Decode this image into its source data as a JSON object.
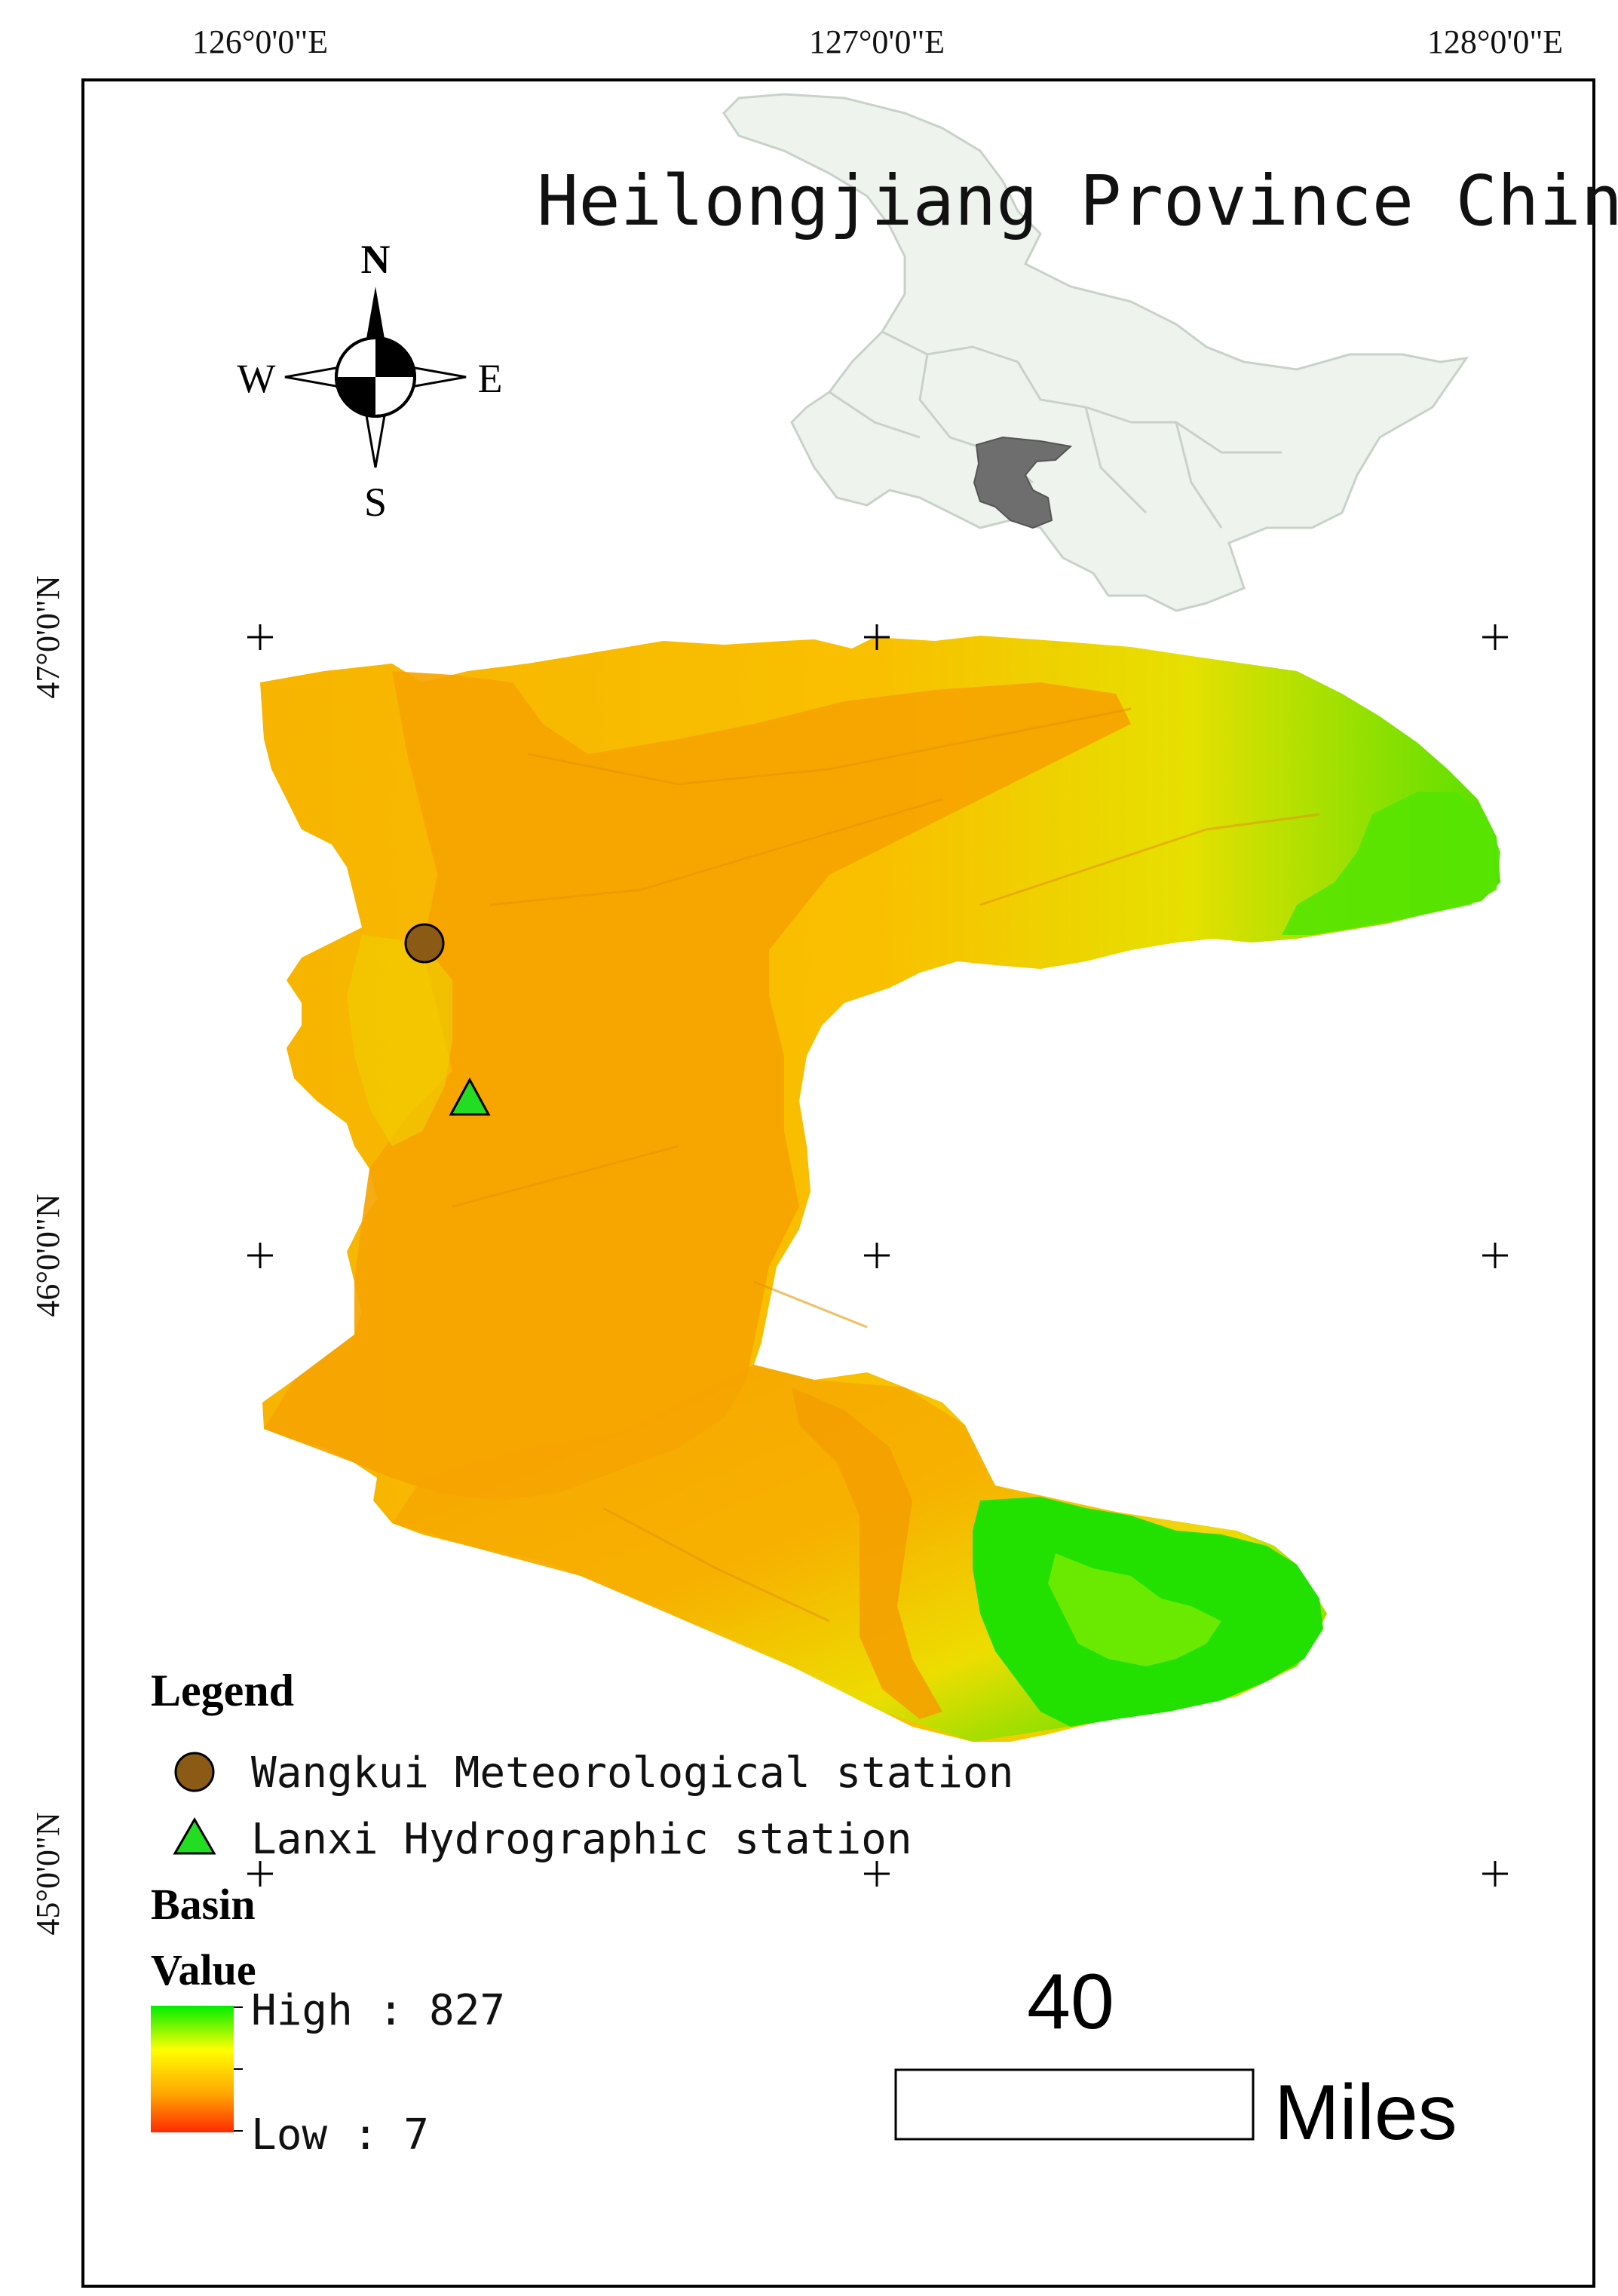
{
  "map": {
    "title": "Heilongjiang Province China",
    "longitude_labels": [
      "126°0'0\"E",
      "127°0'0\"E",
      "128°0'0\"E"
    ],
    "latitude_labels": [
      "47°0'0\"N",
      "46°0'0\"N",
      "45°0'0\"N"
    ],
    "compass": {
      "north": "N",
      "south": "S",
      "east": "E",
      "west": "W"
    },
    "colors": {
      "low": "#ff2a00",
      "mid": "#ffa500",
      "high_mid": "#ffff00",
      "high": "#00ee00",
      "meteorological_marker": "#8b5a14",
      "hydrographic_marker": "#22dd22",
      "inset_fill": "#eef3ee",
      "inset_highlight": "#6e6e6e"
    }
  },
  "legend": {
    "title": "Legend",
    "items": [
      {
        "label": "Wangkui Meteorological station",
        "icon": "brown-circle-icon"
      },
      {
        "label": "Lanxi Hydrographic station",
        "icon": "green-triangle-icon"
      }
    ],
    "basin_label": "Basin",
    "value_label": "Value",
    "high_label": "High : 827",
    "low_label": "Low : 7"
  },
  "scale_bar": {
    "number": "40",
    "unit": "Miles"
  }
}
